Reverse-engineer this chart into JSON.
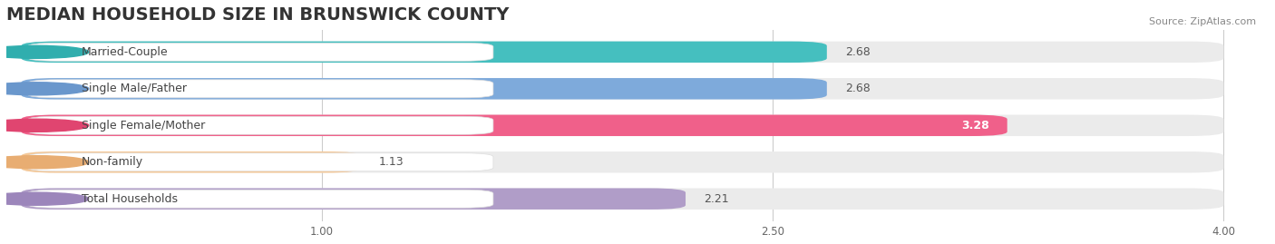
{
  "title": "MEDIAN HOUSEHOLD SIZE IN BRUNSWICK COUNTY",
  "source": "Source: ZipAtlas.com",
  "categories": [
    "Married-Couple",
    "Single Male/Father",
    "Single Female/Mother",
    "Non-family",
    "Total Households"
  ],
  "values": [
    2.68,
    2.68,
    3.28,
    1.13,
    2.21
  ],
  "bar_colors": [
    "#45bfbf",
    "#7eaadb",
    "#f0608a",
    "#f5c897",
    "#b09dc8"
  ],
  "dot_colors": [
    "#30aeae",
    "#6a97cc",
    "#e04570",
    "#e8ad72",
    "#9c86bb"
  ],
  "value_inside": [
    false,
    false,
    true,
    false,
    false
  ],
  "xlim_data": [
    0.0,
    4.0
  ],
  "x_min": 0.0,
  "x_max": 4.0,
  "xticks": [
    1.0,
    2.5,
    4.0
  ],
  "background_color": "#ffffff",
  "bar_track_color": "#ebebeb",
  "title_fontsize": 14,
  "source_fontsize": 8,
  "label_fontsize": 9,
  "value_fontsize": 9
}
